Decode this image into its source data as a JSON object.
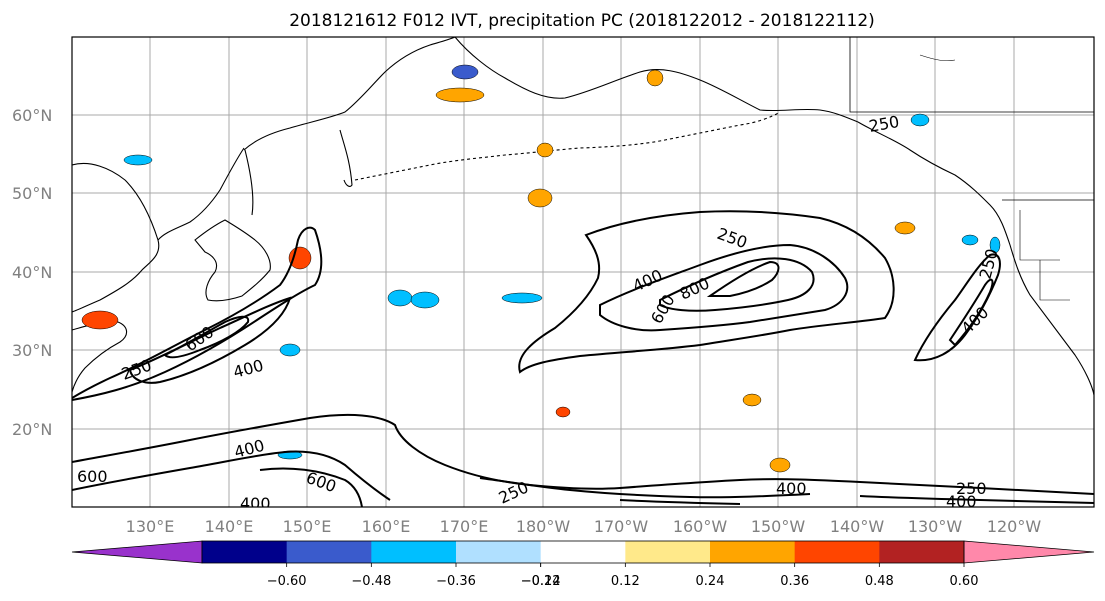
{
  "title": "2018121612 F012 IVT, precipitation PC (2018122012 - 2018122112)",
  "lat_labels": [
    "60°N",
    "50°N",
    "40°N",
    "30°N",
    "20°N"
  ],
  "lon_labels": [
    "130°E",
    "140°E",
    "150°E",
    "160°E",
    "170°E",
    "180°W",
    "170°W",
    "160°W",
    "150°W",
    "140°W",
    "130°W",
    "120°W"
  ],
  "colorbar": {
    "tick_labels": [
      "−0.60",
      "−0.48",
      "−0.36",
      "−0.24",
      "−0.12",
      "0.12",
      "0.24",
      "0.36",
      "0.48",
      "0.60"
    ],
    "colors": [
      "#9932cc",
      "#00008b",
      "#3a5bcc",
      "#00bfff",
      "#b0e0ff",
      "#ffffff",
      "#ffe98a",
      "#ffa500",
      "#ff4500",
      "#b22222",
      "#ff88aa"
    ]
  },
  "contour_labels": [
    "250",
    "400",
    "600",
    "800",
    "250",
    "400",
    "600",
    "400",
    "250",
    "400",
    "600",
    "250",
    "400",
    "600",
    "400",
    "250",
    "250",
    "400"
  ]
}
